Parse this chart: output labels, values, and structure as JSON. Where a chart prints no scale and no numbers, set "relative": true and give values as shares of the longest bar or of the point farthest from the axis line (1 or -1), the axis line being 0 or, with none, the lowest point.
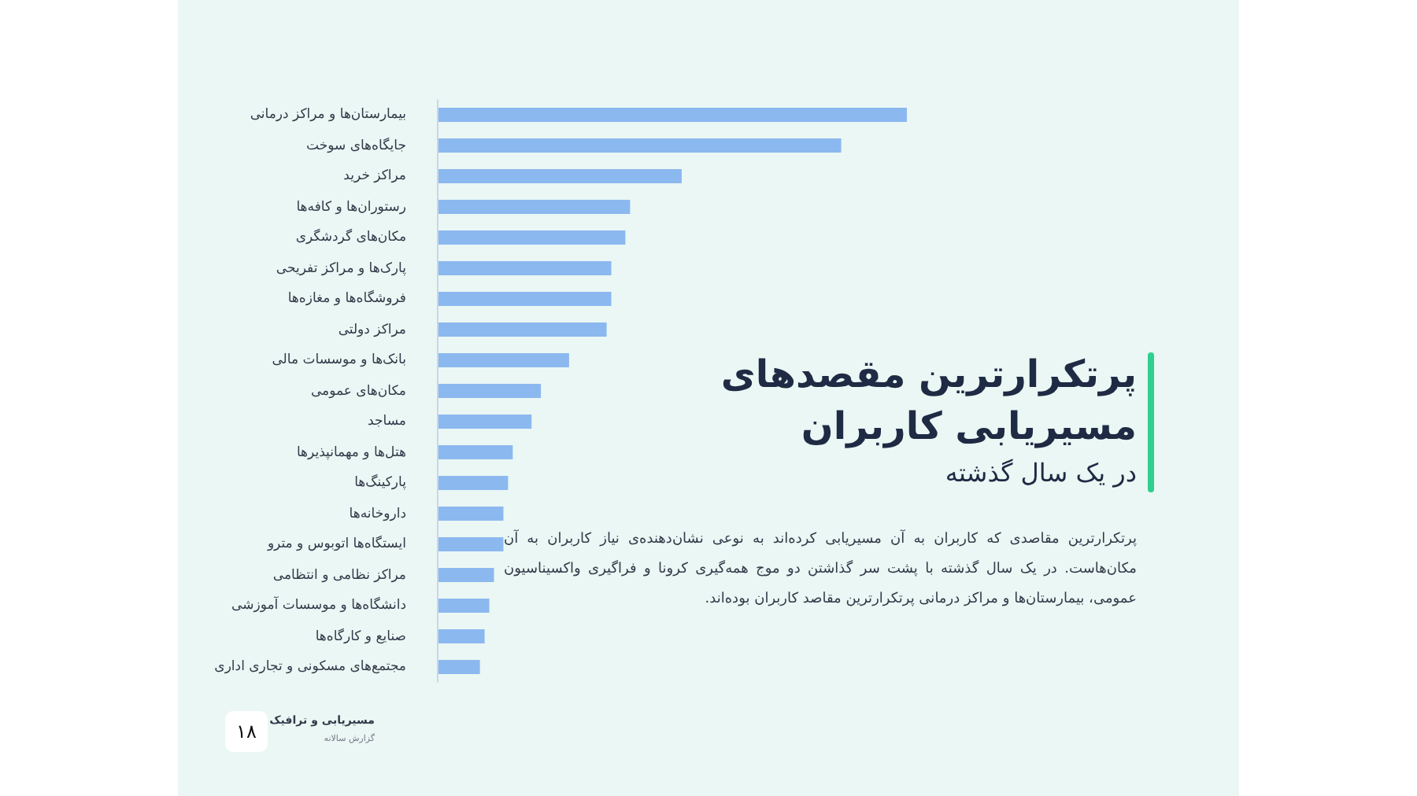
{
  "chart_data": {
    "type": "bar",
    "orientation": "horizontal",
    "relative": true,
    "title": "پرتکرارترین مقصدهای مسیریابی کاربران",
    "subtitle": "در یک سال گذشته",
    "categories": [
      "بیمارستان‌ها و مراکز درمانی",
      "جایگاه‌های سوخت",
      "مراکز خرید",
      "رستوران‌ها و کافه‌ها",
      "مکان‌های گردشگری",
      "پارک‌ها و مراکز تفریحی",
      "فروشگاه‌ها و مغازه‌ها",
      "مراکز دولتی",
      "بانک‌ها و موسسات مالی",
      "مکان‌های عمومی",
      "مساجد",
      "هتل‌ها و مهمانپذیرها",
      "پارکینگ‌ها",
      "داروخانه‌ها",
      "ایستگاه‌ها اتوبوس و مترو",
      "مراکز نظامی و انتظامی",
      "دانشگاه‌ها و موسسات آموزشی",
      "صنایع و کارگاه‌ها",
      "مجتمع‌های مسکونی و تجاری اداری"
    ],
    "values": [
      1,
      0.86,
      0.52,
      0.41,
      0.4,
      0.37,
      0.37,
      0.36,
      0.28,
      0.22,
      0.2,
      0.16,
      0.15,
      0.14,
      0.14,
      0.12,
      0.11,
      0.1,
      0.09
    ],
    "color": "#8cb8f0",
    "annotations": [
      "پرتکرارترین مقاصدی که کاربران به آن مسیریابی کرده‌اند به نوعی نشان‌دهنده‌ی نیاز کاربران به آن مکان‌هاست. در یک سال گذشته با پشت سر گذاشتن دو موج همه‌گیری کرونا و فراگیری واکسیناسیون عمومی، بیمارستان‌ها و مراکز درمانی پرتکرارترین مقاصد کاربران بوده‌اند.",
      "مسیریابی و ترافیک",
      "گزارش سالانه",
      "۱۸"
    ]
  }
}
